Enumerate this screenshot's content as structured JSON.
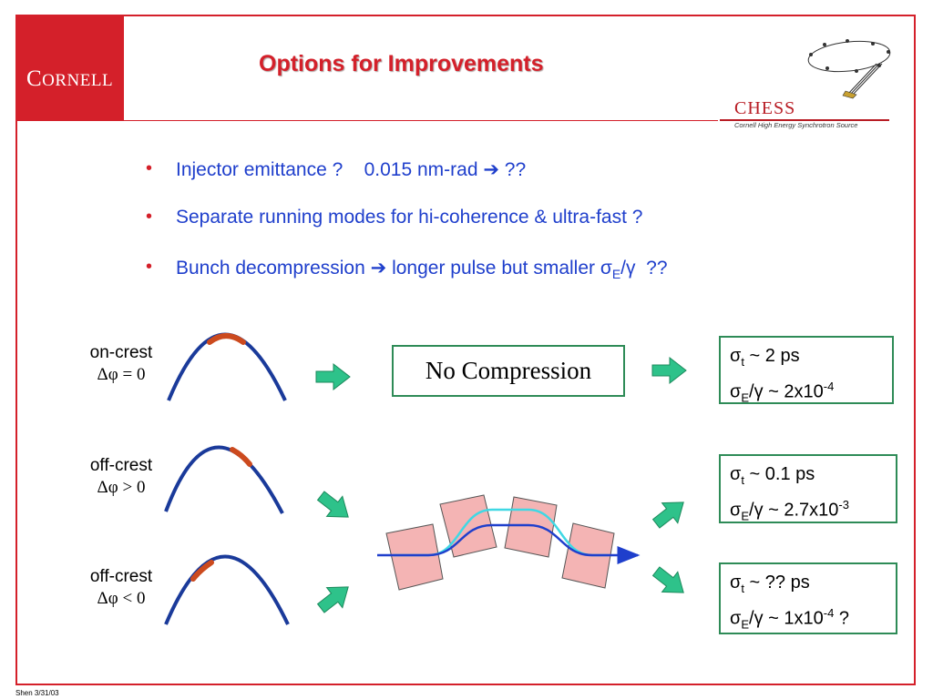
{
  "logo": {
    "initial": "C",
    "rest": "ORNELL"
  },
  "title": "Options for Improvements",
  "chess": {
    "name": "CHESS",
    "subtitle": "Cornell High Energy Synchrotron Source"
  },
  "bullets": [
    {
      "pre": "Injector emittance ?    0.015 nm-rad ",
      "arrow": "➔",
      "post": " ??"
    },
    {
      "pre": "Separate running modes for hi-coherence & ultra-fast ?",
      "arrow": "",
      "post": ""
    },
    {
      "pre": "Bunch decompression ",
      "arrow": "➔",
      "post": " longer pulse but smaller "
    }
  ],
  "bullet3_sigma": "σ",
  "bullet3_sub": "E",
  "bullet3_tail": "/γ  ??",
  "bullet_marker": "•",
  "cases": [
    {
      "label": "on-crest",
      "phase": "Δφ = 0"
    },
    {
      "label": "off-crest",
      "phase": "Δφ > 0"
    },
    {
      "label": "off-crest",
      "phase": "Δφ < 0"
    }
  ],
  "no_compression": "No Compression",
  "results": [
    {
      "t_sym": "σ",
      "t_sub": "t",
      "t_val": " ~ 2 ps",
      "e_sym": "σ",
      "e_sub": "E",
      "e_mid": "/γ ~ 2x10",
      "e_exp": "-4",
      "e_tail": ""
    },
    {
      "t_sym": "σ",
      "t_sub": "t",
      "t_val": " ~ 0.1 ps",
      "e_sym": "σ",
      "e_sub": "E",
      "e_mid": "/γ ~ 2.7x10",
      "e_exp": "-3",
      "e_tail": ""
    },
    {
      "t_sym": "σ",
      "t_sub": "t",
      "t_val": " ~ ?? ps",
      "e_sym": "σ",
      "e_sub": "E",
      "e_mid": "/γ ~ 1x10",
      "e_exp": "-4",
      "e_tail": " ?"
    }
  ],
  "footer": "Shen 3/31/03",
  "colors": {
    "accent": "#d4202a",
    "bullet_text": "#1f3fcc",
    "curve": "#1a3a9a",
    "bunch": "#cc4a1e",
    "arrow": "#2ec28a",
    "box_border": "#2e8b57"
  }
}
